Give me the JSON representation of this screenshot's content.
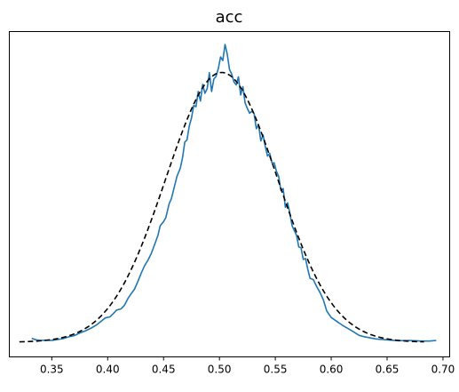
{
  "chart_data": {
    "type": "line",
    "title": "acc",
    "xlabel": "",
    "ylabel": "",
    "xlim": [
      0.312,
      0.706
    ],
    "ylim": [
      0,
      1.0
    ],
    "x_ticks": [
      0.35,
      0.4,
      0.45,
      0.5,
      0.55,
      0.6,
      0.65,
      0.7
    ],
    "x_tick_labels": [
      "0.35",
      "0.40",
      "0.45",
      "0.50",
      "0.55",
      "0.60",
      "0.65",
      "0.70"
    ],
    "y_ticks_visible": false,
    "grid": false,
    "legend": "none",
    "colors": {
      "empirical": "#1f77b4",
      "normal": "#000000",
      "axes": "#000000",
      "background": "#ffffff"
    },
    "series": [
      {
        "style": "solid",
        "color": "#1f77b4",
        "x": [
          0.332,
          0.336,
          0.34,
          0.345,
          0.35,
          0.355,
          0.36,
          0.365,
          0.37,
          0.375,
          0.38,
          0.385,
          0.39,
          0.395,
          0.398,
          0.402,
          0.405,
          0.408,
          0.412,
          0.415,
          0.418,
          0.421,
          0.424,
          0.427,
          0.43,
          0.433,
          0.436,
          0.439,
          0.442,
          0.445,
          0.447,
          0.45,
          0.452,
          0.455,
          0.457,
          0.46,
          0.462,
          0.465,
          0.467,
          0.469,
          0.471,
          0.473,
          0.475,
          0.477,
          0.479,
          0.481,
          0.483,
          0.485,
          0.487,
          0.489,
          0.491,
          0.493,
          0.495,
          0.497,
          0.499,
          0.501,
          0.503,
          0.505,
          0.507,
          0.509,
          0.511,
          0.513,
          0.515,
          0.517,
          0.519,
          0.521,
          0.523,
          0.525,
          0.527,
          0.529,
          0.531,
          0.533,
          0.535,
          0.537,
          0.539,
          0.541,
          0.543,
          0.545,
          0.547,
          0.549,
          0.551,
          0.553,
          0.555,
          0.557,
          0.559,
          0.561,
          0.563,
          0.565,
          0.567,
          0.569,
          0.571,
          0.573,
          0.575,
          0.577,
          0.579,
          0.581,
          0.584,
          0.587,
          0.59,
          0.593,
          0.596,
          0.6,
          0.605,
          0.61,
          0.615,
          0.62,
          0.625,
          0.63,
          0.64,
          0.65,
          0.66,
          0.67,
          0.68,
          0.688,
          0.694
        ],
        "y": [
          0.013,
          0.008,
          0.006,
          0.007,
          0.006,
          0.009,
          0.012,
          0.018,
          0.022,
          0.031,
          0.038,
          0.047,
          0.058,
          0.073,
          0.082,
          0.085,
          0.096,
          0.108,
          0.112,
          0.124,
          0.146,
          0.163,
          0.178,
          0.204,
          0.232,
          0.257,
          0.275,
          0.298,
          0.328,
          0.359,
          0.391,
          0.405,
          0.418,
          0.465,
          0.482,
          0.527,
          0.557,
          0.585,
          0.62,
          0.672,
          0.68,
          0.726,
          0.753,
          0.795,
          0.791,
          0.842,
          0.81,
          0.866,
          0.836,
          0.851,
          0.905,
          0.842,
          0.884,
          0.893,
          0.919,
          0.958,
          0.946,
          1.0,
          0.967,
          0.916,
          0.9,
          0.874,
          0.864,
          0.891,
          0.83,
          0.858,
          0.803,
          0.785,
          0.769,
          0.776,
          0.768,
          0.717,
          0.73,
          0.676,
          0.696,
          0.658,
          0.625,
          0.634,
          0.602,
          0.602,
          0.574,
          0.557,
          0.509,
          0.516,
          0.453,
          0.468,
          0.433,
          0.391,
          0.375,
          0.359,
          0.32,
          0.317,
          0.278,
          0.281,
          0.246,
          0.215,
          0.21,
          0.187,
          0.167,
          0.142,
          0.105,
          0.083,
          0.07,
          0.057,
          0.046,
          0.035,
          0.023,
          0.018,
          0.011,
          0.008,
          0.005,
          0.006,
          0.004,
          0.004,
          0.006
        ]
      },
      {
        "style": "dashed",
        "color": "#000000",
        "distribution": "normal",
        "mean": 0.502,
        "sd": 0.05,
        "peak": 0.906,
        "x_range": [
          0.321,
          0.683
        ]
      }
    ]
  }
}
